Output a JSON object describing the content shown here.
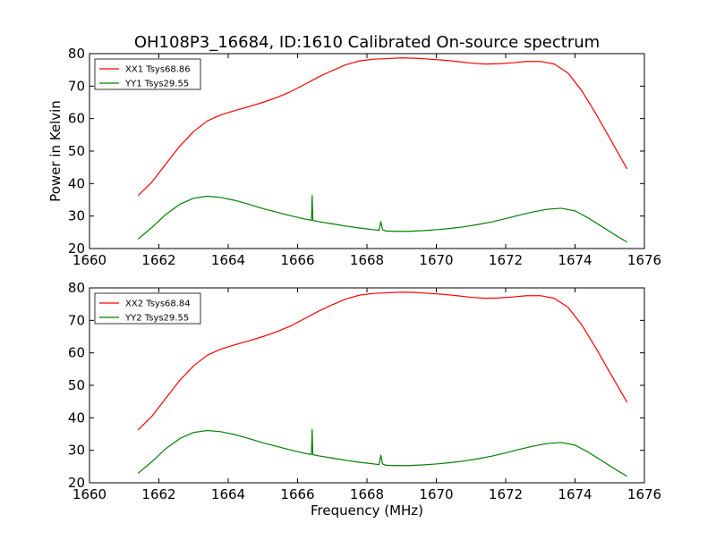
{
  "figure": {
    "title": "OH108P3_16684, ID:1610 Calibrated On-source spectrum",
    "xlabel": "Frequency (MHz)",
    "ylabel": "Power in Kelvin"
  },
  "colors": {
    "xx": "#ff0000",
    "yy": "#008000",
    "axis": "#000000",
    "background": "#ffffff"
  },
  "chart_data": [
    {
      "type": "line",
      "title": "OH108P3_16684, ID:1610 Calibrated On-source spectrum",
      "xlabel": "",
      "ylabel": "Power in Kelvin",
      "xlim": [
        1660,
        1676
      ],
      "ylim": [
        20,
        80
      ],
      "xticks": [
        1660,
        1662,
        1664,
        1666,
        1668,
        1670,
        1672,
        1674,
        1676
      ],
      "yticks": [
        20,
        30,
        40,
        50,
        60,
        70,
        80
      ],
      "grid": false,
      "legend_position": "top-left",
      "series": [
        {
          "name": "XX1 Tsys68.86",
          "color": "#ff0000",
          "x": [
            1661.4,
            1661.8,
            1662.2,
            1662.6,
            1663.0,
            1663.4,
            1663.8,
            1664.2,
            1664.6,
            1665.0,
            1665.4,
            1665.8,
            1666.2,
            1666.6,
            1667.0,
            1667.4,
            1667.8,
            1668.2,
            1668.6,
            1669.0,
            1669.4,
            1669.8,
            1670.2,
            1670.6,
            1671.0,
            1671.4,
            1671.8,
            1672.2,
            1672.6,
            1673.0,
            1673.4,
            1673.8,
            1674.2,
            1674.6,
            1675.0,
            1675.5
          ],
          "y": [
            36.3,
            40.5,
            46.0,
            51.5,
            56.0,
            59.3,
            61.2,
            62.5,
            63.7,
            65.0,
            66.5,
            68.3,
            70.5,
            72.8,
            74.8,
            76.6,
            77.8,
            78.3,
            78.5,
            78.7,
            78.6,
            78.3,
            78.0,
            77.6,
            77.1,
            76.8,
            76.9,
            77.2,
            77.6,
            77.6,
            76.8,
            74.0,
            68.5,
            61.5,
            54.0,
            44.5
          ]
        },
        {
          "name": "YY1 Tsys29.55",
          "color": "#008000",
          "x": [
            1661.4,
            1661.8,
            1662.2,
            1662.6,
            1663.0,
            1663.4,
            1663.8,
            1664.2,
            1664.6,
            1665.0,
            1665.4,
            1665.8,
            1666.2,
            1666.4,
            1666.42,
            1666.44,
            1666.46,
            1666.6,
            1667.0,
            1667.4,
            1667.8,
            1668.2,
            1668.35,
            1668.4,
            1668.45,
            1668.55,
            1668.8,
            1669.2,
            1669.6,
            1670.0,
            1670.4,
            1670.8,
            1671.2,
            1671.6,
            1672.0,
            1672.4,
            1672.8,
            1673.2,
            1673.6,
            1674.0,
            1674.4,
            1674.8,
            1675.2,
            1675.5
          ],
          "y": [
            22.9,
            26.5,
            30.5,
            33.6,
            35.5,
            36.1,
            35.7,
            34.8,
            33.6,
            32.3,
            31.2,
            30.1,
            29.1,
            28.7,
            36.3,
            28.7,
            28.6,
            28.3,
            27.6,
            26.9,
            26.3,
            25.8,
            25.6,
            28.3,
            25.8,
            25.4,
            25.3,
            25.3,
            25.5,
            25.8,
            26.2,
            26.7,
            27.4,
            28.2,
            29.2,
            30.3,
            31.3,
            32.1,
            32.4,
            31.6,
            29.3,
            26.6,
            23.9,
            22.0
          ]
        }
      ]
    },
    {
      "type": "line",
      "title": "",
      "xlabel": "Frequency (MHz)",
      "ylabel": "",
      "xlim": [
        1660,
        1676
      ],
      "ylim": [
        20,
        80
      ],
      "xticks": [
        1660,
        1662,
        1664,
        1666,
        1668,
        1670,
        1672,
        1674,
        1676
      ],
      "yticks": [
        20,
        30,
        40,
        50,
        60,
        70,
        80
      ],
      "grid": false,
      "legend_position": "top-left",
      "series": [
        {
          "name": "XX2 Tsys68.84",
          "color": "#ff0000",
          "x": [
            1661.4,
            1661.8,
            1662.2,
            1662.6,
            1663.0,
            1663.4,
            1663.8,
            1664.2,
            1664.6,
            1665.0,
            1665.4,
            1665.8,
            1666.2,
            1666.6,
            1667.0,
            1667.4,
            1667.8,
            1668.2,
            1668.6,
            1669.0,
            1669.4,
            1669.8,
            1670.2,
            1670.6,
            1671.0,
            1671.4,
            1671.8,
            1672.2,
            1672.6,
            1673.0,
            1673.4,
            1673.8,
            1674.2,
            1674.6,
            1675.0,
            1675.5
          ],
          "y": [
            36.3,
            40.5,
            46.0,
            51.5,
            56.0,
            59.3,
            61.2,
            62.5,
            63.7,
            65.0,
            66.5,
            68.3,
            70.5,
            72.8,
            74.8,
            76.6,
            77.8,
            78.3,
            78.5,
            78.7,
            78.6,
            78.3,
            78.0,
            77.6,
            77.1,
            76.8,
            76.9,
            77.2,
            77.6,
            77.6,
            76.8,
            74.0,
            68.5,
            61.5,
            54.0,
            44.8
          ]
        },
        {
          "name": "YY2 Tsys29.55",
          "color": "#008000",
          "x": [
            1661.4,
            1661.8,
            1662.2,
            1662.6,
            1663.0,
            1663.4,
            1663.8,
            1664.2,
            1664.6,
            1665.0,
            1665.4,
            1665.8,
            1666.2,
            1666.4,
            1666.42,
            1666.44,
            1666.46,
            1666.6,
            1667.0,
            1667.4,
            1667.8,
            1668.2,
            1668.35,
            1668.4,
            1668.45,
            1668.55,
            1668.8,
            1669.2,
            1669.6,
            1670.0,
            1670.4,
            1670.8,
            1671.2,
            1671.6,
            1672.0,
            1672.4,
            1672.8,
            1673.2,
            1673.6,
            1674.0,
            1674.4,
            1674.8,
            1675.2,
            1675.5
          ],
          "y": [
            22.9,
            26.5,
            30.5,
            33.6,
            35.5,
            36.1,
            35.7,
            34.8,
            33.6,
            32.3,
            31.2,
            30.1,
            29.1,
            28.7,
            36.4,
            28.7,
            28.6,
            28.3,
            27.6,
            26.9,
            26.3,
            25.8,
            25.6,
            28.5,
            25.8,
            25.4,
            25.3,
            25.3,
            25.5,
            25.8,
            26.2,
            26.7,
            27.4,
            28.2,
            29.2,
            30.3,
            31.3,
            32.1,
            32.4,
            31.6,
            29.3,
            26.6,
            23.9,
            22.0
          ]
        }
      ]
    }
  ]
}
